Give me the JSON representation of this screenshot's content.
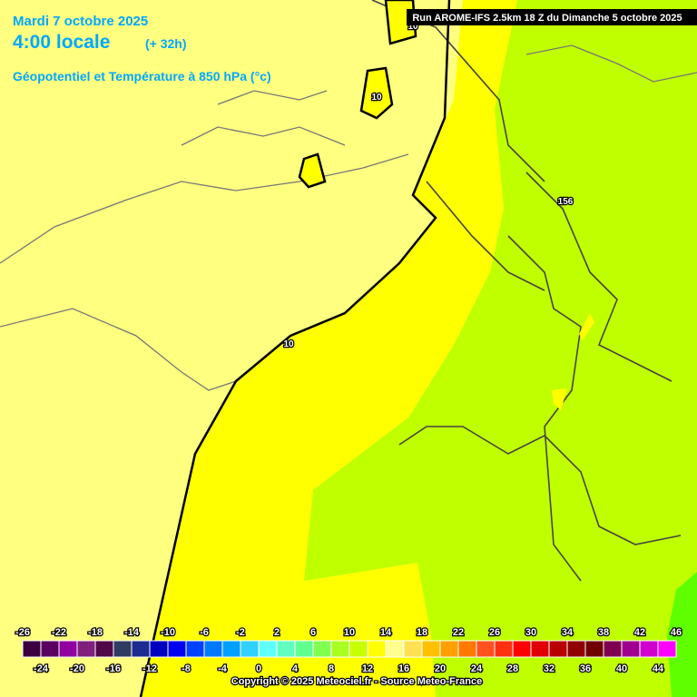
{
  "header": {
    "date": "Mardi 7 octobre 2025",
    "time": "4:00 locale",
    "lead": "(+ 32h)",
    "field": "Géopotentiel et Température à 850 hPa (°c)",
    "run": "Run AROME-IFS 2.5km 18 Z du Dimanche 5 octobre 2025"
  },
  "contour_labels": [
    "10",
    "10",
    "10",
    "156"
  ],
  "legend": {
    "ticks": [
      -26,
      -24,
      -22,
      -20,
      -18,
      -16,
      -14,
      -12,
      -10,
      -8,
      -6,
      -4,
      -2,
      0,
      2,
      4,
      6,
      8,
      10,
      12,
      14,
      16,
      18,
      20,
      22,
      24,
      26,
      28,
      30,
      32,
      34,
      36,
      38,
      40,
      42,
      44,
      46
    ],
    "colors": [
      "#3c0040",
      "#5a0060",
      "#9000a0",
      "#80207c",
      "#500848",
      "#303c60",
      "#1c2c90",
      "#0000c0",
      "#0000f0",
      "#0040ff",
      "#0078ff",
      "#00a0ff",
      "#30d0ff",
      "#60ffff",
      "#60ffc0",
      "#60ff90",
      "#80ff50",
      "#a8ff20",
      "#c8ff00",
      "#ffff00",
      "#ffff90",
      "#ffe050",
      "#ffc000",
      "#ffa000",
      "#ff7800",
      "#ff5020",
      "#ff3010",
      "#ff0000",
      "#e00000",
      "#b80000",
      "#900000",
      "#700000",
      "#800050",
      "#a00090",
      "#d000d0",
      "#ff00ff",
      "#ff80ff"
    ]
  },
  "copyright": "Copyright © 2025 Meteociel.fr - Source Meteo-France"
}
